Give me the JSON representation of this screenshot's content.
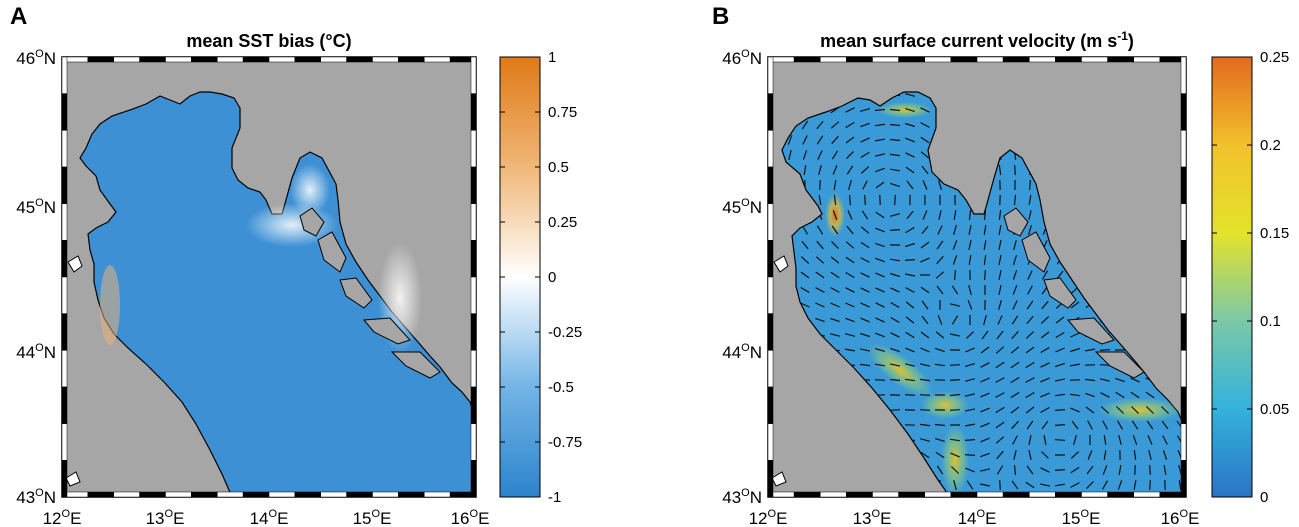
{
  "figure": {
    "panels": [
      {
        "letter": "A",
        "title": "mean SST bias (°C)",
        "colorbar_ticks": [
          "1",
          "0.75",
          "0.5",
          "0.25",
          "0",
          "-0.25",
          "-0.5",
          "-0.75",
          "-1"
        ]
      },
      {
        "letter": "B",
        "title_main": "mean surface current velocity (m s",
        "title_sup": "-1",
        "title_end": ")",
        "colorbar_ticks": [
          "0.25",
          "0.2",
          "0.15",
          "0.1",
          "0.05",
          "0"
        ]
      }
    ],
    "lat_labels": [
      {
        "deg": "46",
        "hemi": "N"
      },
      {
        "deg": "45",
        "hemi": "N"
      },
      {
        "deg": "44",
        "hemi": "N"
      },
      {
        "deg": "43",
        "hemi": "N"
      }
    ],
    "lon_labels": [
      {
        "deg": "12",
        "hemi": "E"
      },
      {
        "deg": "13",
        "hemi": "E"
      },
      {
        "deg": "14",
        "hemi": "E"
      },
      {
        "deg": "15",
        "hemi": "E"
      },
      {
        "deg": "16",
        "hemi": "E"
      }
    ],
    "degree_symbol": "O"
  },
  "colors": {
    "land": "#a6a6a6",
    "sea_a": "#3f93d6",
    "sea_b": "#2f8ed1",
    "bias_positive": "#e58a2a",
    "bias_zero": "#ffffff",
    "bias_negative": "#2c84cc",
    "speed_low": "#2a77c7",
    "speed_mid": "#e8e028",
    "speed_high": "#e36a1f"
  },
  "chart_data": [
    {
      "type": "heatmap",
      "title": "mean SST bias (°C)",
      "xlim": [
        12,
        16
      ],
      "ylim": [
        43,
        46
      ],
      "x_ticks": [
        12,
        13,
        14,
        15,
        16
      ],
      "y_ticks": [
        43,
        44,
        45,
        46
      ],
      "colorbar": {
        "range": [
          -1,
          1
        ],
        "ticks": [
          1,
          0.75,
          0.5,
          0.25,
          0,
          -0.25,
          -0.5,
          -0.75,
          -1
        ]
      },
      "grid": false
    },
    {
      "type": "heatmap",
      "title": "mean surface current velocity (m s-1)",
      "xlim": [
        12,
        16
      ],
      "ylim": [
        43,
        46
      ],
      "x_ticks": [
        12,
        13,
        14,
        15,
        16
      ],
      "y_ticks": [
        43,
        44,
        45,
        46
      ],
      "colorbar": {
        "range": [
          0,
          0.25
        ],
        "ticks": [
          0.25,
          0.2,
          0.15,
          0.1,
          0.05,
          0
        ]
      },
      "grid": false
    }
  ]
}
